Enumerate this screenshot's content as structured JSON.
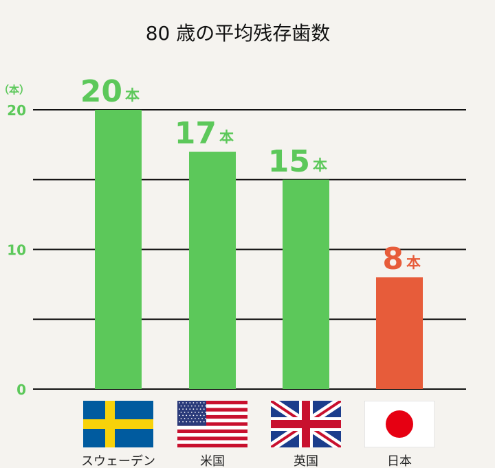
{
  "chart_data": {
    "type": "bar",
    "title": "80 歳の平均残存歯数",
    "ylabel": "（本）",
    "ylim": [
      0,
      20
    ],
    "yticks": [
      0,
      10,
      20
    ],
    "gridlines": [
      5,
      10,
      15,
      20
    ],
    "value_unit": "本",
    "categories": [
      "スウェーデン",
      "米国",
      "英国",
      "日本"
    ],
    "values": [
      20,
      17,
      15,
      8
    ],
    "colors": [
      "#5cc85a",
      "#5cc85a",
      "#5cc85a",
      "#e75c3a"
    ],
    "flags": [
      "sweden-flag",
      "usa-flag",
      "uk-flag",
      "japan-flag"
    ],
    "grid": true,
    "legend": "none"
  },
  "colors": {
    "accent_green": "#5cc85a",
    "accent_orange": "#e75c3a",
    "background": "#f5f3ef"
  }
}
